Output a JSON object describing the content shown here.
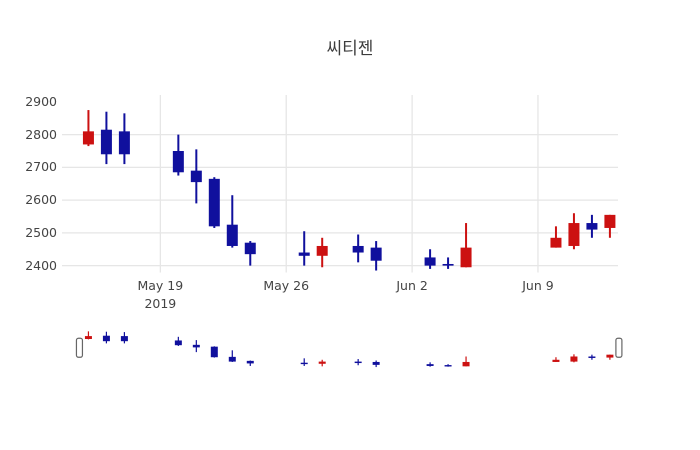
{
  "chart_data": {
    "type": "candlestick",
    "title": "씨티젠",
    "x_base_date": "2019-05-19",
    "x_range_days": [
      -5.47,
      25.45
    ],
    "y_range": [
      2379,
      2921
    ],
    "candles": [
      {
        "date": "2019-05-15",
        "open": 2770,
        "high": 2875,
        "low": 2765,
        "close": 2810
      },
      {
        "date": "2019-05-16",
        "open": 2815,
        "high": 2870,
        "low": 2710,
        "close": 2740
      },
      {
        "date": "2019-05-17",
        "open": 2810,
        "high": 2865,
        "low": 2710,
        "close": 2740
      },
      {
        "date": "2019-05-20",
        "open": 2750,
        "high": 2800,
        "low": 2675,
        "close": 2685
      },
      {
        "date": "2019-05-21",
        "open": 2690,
        "high": 2755,
        "low": 2590,
        "close": 2655
      },
      {
        "date": "2019-05-22",
        "open": 2665,
        "high": 2670,
        "low": 2515,
        "close": 2520
      },
      {
        "date": "2019-05-23",
        "open": 2525,
        "high": 2615,
        "low": 2455,
        "close": 2460
      },
      {
        "date": "2019-05-24",
        "open": 2470,
        "high": 2475,
        "low": 2400,
        "close": 2435
      },
      {
        "date": "2019-05-27",
        "open": 2440,
        "high": 2505,
        "low": 2400,
        "close": 2430
      },
      {
        "date": "2019-05-28",
        "open": 2430,
        "high": 2485,
        "low": 2395,
        "close": 2460
      },
      {
        "date": "2019-05-30",
        "open": 2460,
        "high": 2495,
        "low": 2410,
        "close": 2440
      },
      {
        "date": "2019-05-31",
        "open": 2455,
        "high": 2475,
        "low": 2385,
        "close": 2415
      },
      {
        "date": "2019-06-03",
        "open": 2425,
        "high": 2450,
        "low": 2390,
        "close": 2400
      },
      {
        "date": "2019-06-04",
        "open": 2405,
        "high": 2425,
        "low": 2390,
        "close": 2400
      },
      {
        "date": "2019-06-05",
        "open": 2395,
        "high": 2530,
        "low": 2395,
        "close": 2455
      },
      {
        "date": "2019-06-10",
        "open": 2455,
        "high": 2520,
        "low": 2455,
        "close": 2485
      },
      {
        "date": "2019-06-11",
        "open": 2460,
        "high": 2560,
        "low": 2450,
        "close": 2530
      },
      {
        "date": "2019-06-12",
        "open": 2530,
        "high": 2555,
        "low": 2485,
        "close": 2510
      },
      {
        "date": "2019-06-13",
        "open": 2515,
        "high": 2555,
        "low": 2485,
        "close": 2555
      }
    ],
    "yticks": [
      {
        "value": 2400,
        "label": "2400",
        "grid": true
      },
      {
        "value": 2500,
        "label": "2500",
        "grid": true
      },
      {
        "value": 2600,
        "label": "2600",
        "grid": true
      },
      {
        "value": 2700,
        "label": "2700",
        "grid": true
      },
      {
        "value": 2800,
        "label": "2800",
        "grid": true
      },
      {
        "value": 2900,
        "label": "2900",
        "grid": false
      }
    ],
    "xticks": [
      {
        "date": "2019-05-19",
        "label": "May 19",
        "sublabel": "2019"
      },
      {
        "date": "2019-05-26",
        "label": "May 26",
        "sublabel": ""
      },
      {
        "date": "2019-06-02",
        "label": "Jun 2",
        "sublabel": ""
      },
      {
        "date": "2019-06-09",
        "label": "Jun 9",
        "sublabel": ""
      }
    ],
    "colors": {
      "increasing": "#cc1111",
      "decreasing": "#10109d",
      "grid": "#e6e6e6",
      "text": "#444444",
      "handle_border": "#666666",
      "handle_fill": "#ffffff"
    },
    "rangeslider": {
      "handle_dates": [
        "2019-05-14T12:00:00",
        "2019-06-13T12:00:00"
      ]
    },
    "legend": "none",
    "grid_on": true
  }
}
